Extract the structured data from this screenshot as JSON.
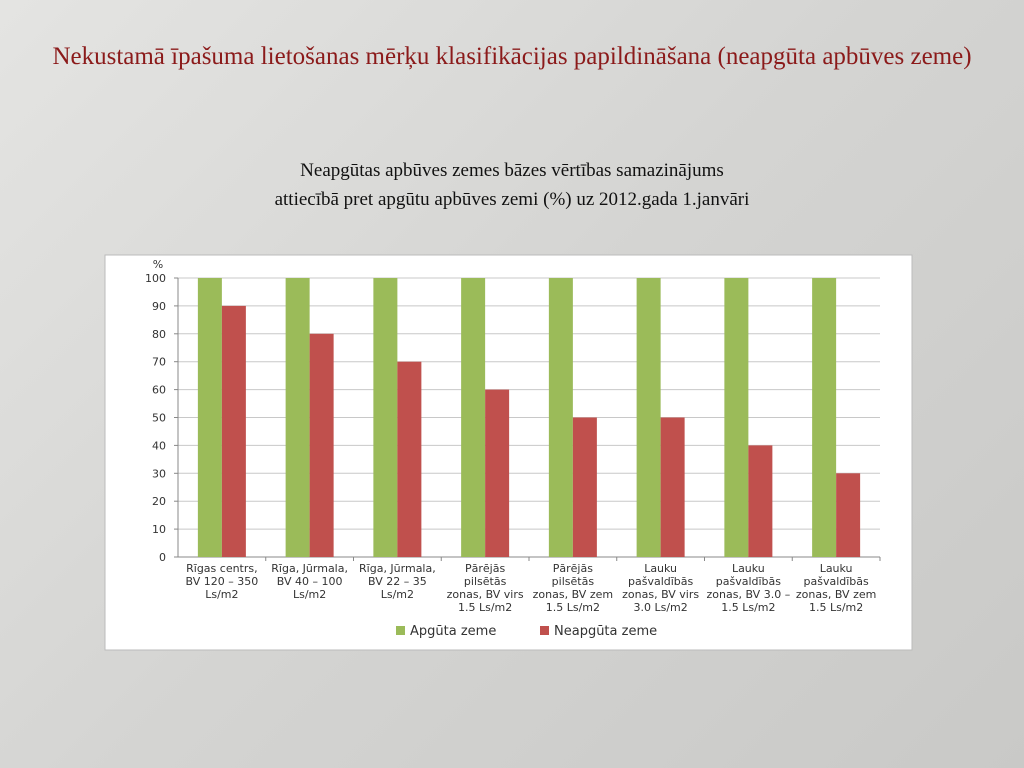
{
  "title": "Nekustamā īpašuma lietošanas mērķu klasifikācijas papildināšana (neapgūta apbūves zeme)",
  "subtitle": [
    "Neapgūtas apbūves zemes bāzes vērtības samazinājums",
    "attiecībā pret apgūtu apbūves zemi (%) uz 2012.gada 1.janvāri"
  ],
  "chart_data": {
    "type": "bar",
    "y_label": "%",
    "categories": [
      [
        "Rīgas centrs,",
        "BV 120 – 350",
        "Ls/m2"
      ],
      [
        "Rīga, Jūrmala,",
        "BV 40 – 100",
        "Ls/m2"
      ],
      [
        "Rīga, Jūrmala,",
        "BV 22 – 35",
        "Ls/m2"
      ],
      [
        "Pārējās",
        "pilsētās",
        "zonas, BV virs",
        "1.5 Ls/m2"
      ],
      [
        "Pārējās",
        "pilsētās",
        "zonas, BV zem",
        "1.5 Ls/m2"
      ],
      [
        "Lauku",
        "pašvaldībās",
        "zonas, BV virs",
        "3.0 Ls/m2"
      ],
      [
        "Lauku",
        "pašvaldībās",
        "zonas, BV 3.0 –",
        "1.5 Ls/m2"
      ],
      [
        "Lauku",
        "pašvaldībās",
        "zonas, BV zem",
        "1.5 Ls/m2"
      ]
    ],
    "series": [
      {
        "name": "Apgūta zeme",
        "color": "#9bbb59",
        "values": [
          100,
          100,
          100,
          100,
          100,
          100,
          100,
          100
        ]
      },
      {
        "name": "Neapgūta zeme",
        "color": "#c0504d",
        "values": [
          90,
          80,
          70,
          60,
          50,
          50,
          40,
          30
        ]
      }
    ],
    "ylim": [
      0,
      100
    ],
    "yticks": [
      0,
      10,
      20,
      30,
      40,
      50,
      60,
      70,
      80,
      90,
      100
    ],
    "grid": true,
    "legend": "bottom"
  }
}
